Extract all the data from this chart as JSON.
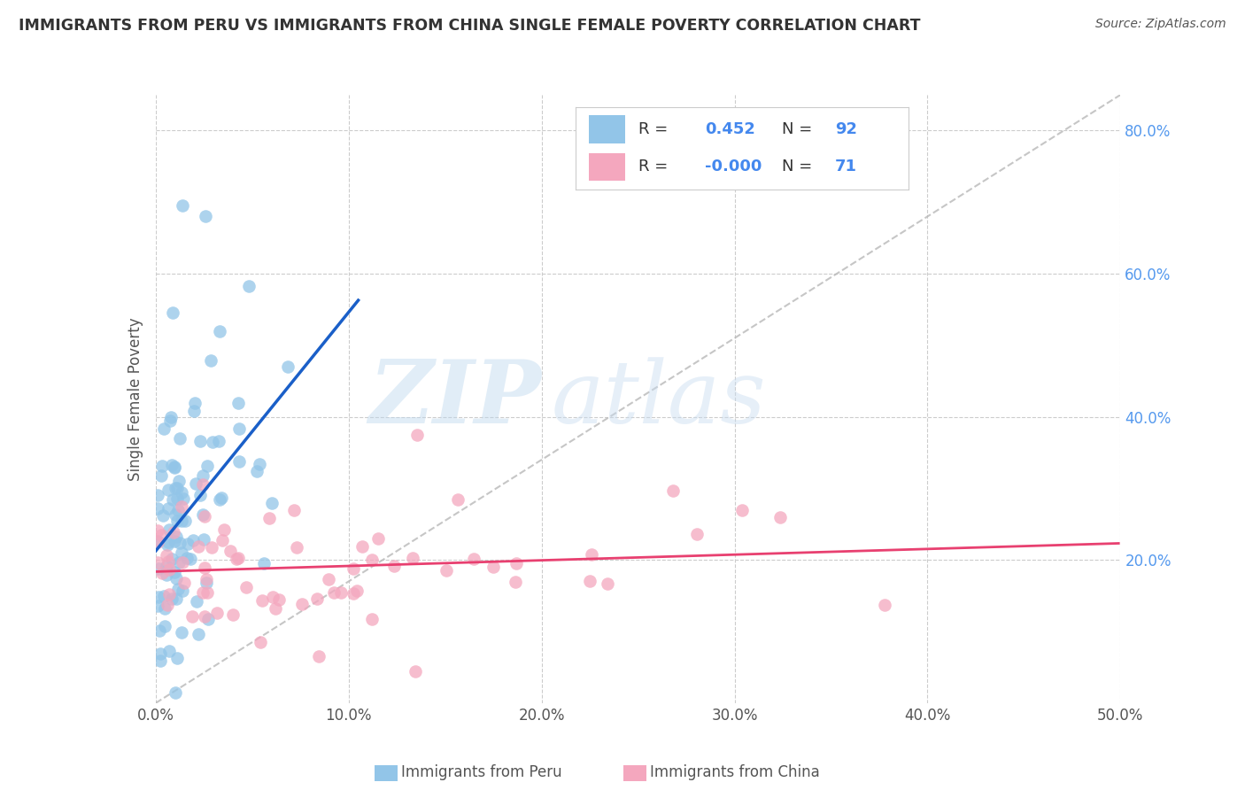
{
  "title": "IMMIGRANTS FROM PERU VS IMMIGRANTS FROM CHINA SINGLE FEMALE POVERTY CORRELATION CHART",
  "source": "Source: ZipAtlas.com",
  "ylabel": "Single Female Poverty",
  "xlim": [
    0.0,
    0.5
  ],
  "ylim": [
    0.0,
    0.85
  ],
  "xtick_labels": [
    "0.0%",
    "10.0%",
    "20.0%",
    "30.0%",
    "40.0%",
    "50.0%"
  ],
  "xtick_vals": [
    0.0,
    0.1,
    0.2,
    0.3,
    0.4,
    0.5
  ],
  "ytick_labels": [
    "20.0%",
    "40.0%",
    "60.0%",
    "80.0%"
  ],
  "ytick_vals": [
    0.2,
    0.4,
    0.6,
    0.8
  ],
  "peru_color": "#92C5E8",
  "china_color": "#F4A7BE",
  "peru_line_color": "#1A5FC8",
  "china_line_color": "#E84070",
  "diagonal_color": "#B8B8B8",
  "R_peru": 0.452,
  "N_peru": 92,
  "R_china": -0.0,
  "N_china": 71,
  "watermark_zip": "ZIP",
  "watermark_atlas": "atlas",
  "tick_color": "#5599EE",
  "title_color": "#333333",
  "label_color": "#555555",
  "legend_r_color": "#333333",
  "legend_n_color": "#4488EE",
  "grid_color": "#CCCCCC",
  "legend_border_color": "#CCCCCC"
}
